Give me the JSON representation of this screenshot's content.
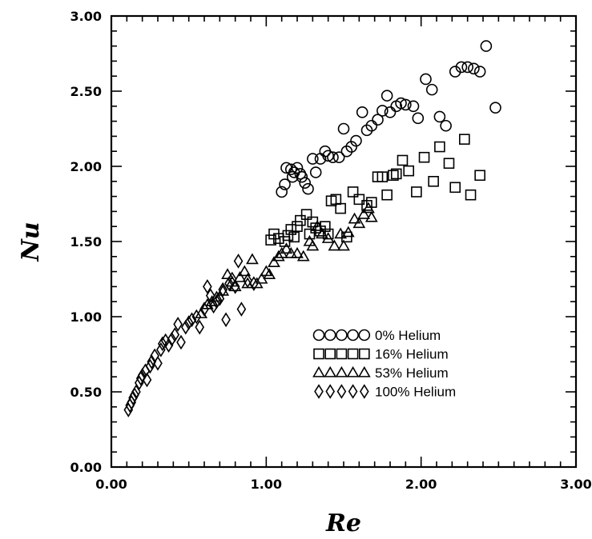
{
  "chart_data": {
    "type": "scatter",
    "title": "",
    "xlabel": "Re",
    "ylabel": "Nu",
    "xlim": [
      0,
      3
    ],
    "ylim": [
      0,
      3
    ],
    "x_ticks": [
      "0.00",
      "1.00",
      "2.00",
      "3.00"
    ],
    "y_ticks": [
      "0.00",
      "0.50",
      "1.00",
      "1.50",
      "2.00",
      "2.50",
      "3.00"
    ],
    "grid": false,
    "legend_position": "center-right",
    "series": [
      {
        "name": "0% Helium",
        "legend_symbols": "○○○○○",
        "marker": "circle",
        "points": [
          [
            1.1,
            1.83
          ],
          [
            1.12,
            1.88
          ],
          [
            1.13,
            1.99
          ],
          [
            1.16,
            1.98
          ],
          [
            1.17,
            1.93
          ],
          [
            1.18,
            1.96
          ],
          [
            1.2,
            1.99
          ],
          [
            1.22,
            1.95
          ],
          [
            1.23,
            1.93
          ],
          [
            1.25,
            1.89
          ],
          [
            1.27,
            1.85
          ],
          [
            1.3,
            2.05
          ],
          [
            1.32,
            1.96
          ],
          [
            1.35,
            2.05
          ],
          [
            1.38,
            2.1
          ],
          [
            1.4,
            2.07
          ],
          [
            1.43,
            2.06
          ],
          [
            1.47,
            2.06
          ],
          [
            1.5,
            2.25
          ],
          [
            1.52,
            2.1
          ],
          [
            1.55,
            2.13
          ],
          [
            1.58,
            2.17
          ],
          [
            1.62,
            2.36
          ],
          [
            1.65,
            2.24
          ],
          [
            1.68,
            2.27
          ],
          [
            1.72,
            2.31
          ],
          [
            1.75,
            2.37
          ],
          [
            1.78,
            2.47
          ],
          [
            1.8,
            2.36
          ],
          [
            1.84,
            2.4
          ],
          [
            1.87,
            2.42
          ],
          [
            1.9,
            2.41
          ],
          [
            1.95,
            2.4
          ],
          [
            1.98,
            2.32
          ],
          [
            2.03,
            2.58
          ],
          [
            2.07,
            2.51
          ],
          [
            2.12,
            2.33
          ],
          [
            2.16,
            2.27
          ],
          [
            2.22,
            2.63
          ],
          [
            2.26,
            2.66
          ],
          [
            2.3,
            2.66
          ],
          [
            2.34,
            2.65
          ],
          [
            2.38,
            2.63
          ],
          [
            2.42,
            2.8
          ],
          [
            2.48,
            2.39
          ]
        ]
      },
      {
        "name": "16% Helium",
        "legend_symbols": "□□□□□",
        "marker": "square",
        "points": [
          [
            1.03,
            1.51
          ],
          [
            1.05,
            1.55
          ],
          [
            1.08,
            1.52
          ],
          [
            1.12,
            1.5
          ],
          [
            1.14,
            1.54
          ],
          [
            1.16,
            1.58
          ],
          [
            1.18,
            1.53
          ],
          [
            1.2,
            1.6
          ],
          [
            1.22,
            1.64
          ],
          [
            1.26,
            1.68
          ],
          [
            1.28,
            1.55
          ],
          [
            1.3,
            1.63
          ],
          [
            1.32,
            1.59
          ],
          [
            1.35,
            1.57
          ],
          [
            1.38,
            1.6
          ],
          [
            1.4,
            1.55
          ],
          [
            1.42,
            1.77
          ],
          [
            1.45,
            1.78
          ],
          [
            1.48,
            1.72
          ],
          [
            1.52,
            1.53
          ],
          [
            1.56,
            1.83
          ],
          [
            1.6,
            1.78
          ],
          [
            1.65,
            1.74
          ],
          [
            1.68,
            1.76
          ],
          [
            1.72,
            1.93
          ],
          [
            1.75,
            1.93
          ],
          [
            1.78,
            1.81
          ],
          [
            1.82,
            1.94
          ],
          [
            1.84,
            1.95
          ],
          [
            1.88,
            2.04
          ],
          [
            1.92,
            1.97
          ],
          [
            1.97,
            1.83
          ],
          [
            2.02,
            2.06
          ],
          [
            2.08,
            1.9
          ],
          [
            2.12,
            2.13
          ],
          [
            2.18,
            2.02
          ],
          [
            2.22,
            1.86
          ],
          [
            2.28,
            2.18
          ],
          [
            2.32,
            1.81
          ],
          [
            2.38,
            1.94
          ]
        ]
      },
      {
        "name": "53% Helium",
        "legend_symbols": "△△△△△",
        "marker": "triangle",
        "points": [
          [
            0.58,
            1.02
          ],
          [
            0.62,
            1.08
          ],
          [
            0.65,
            1.1
          ],
          [
            0.68,
            1.13
          ],
          [
            0.72,
            1.17
          ],
          [
            0.75,
            1.28
          ],
          [
            0.78,
            1.23
          ],
          [
            0.8,
            1.2
          ],
          [
            0.83,
            1.26
          ],
          [
            0.86,
            1.3
          ],
          [
            0.88,
            1.22
          ],
          [
            0.91,
            1.38
          ],
          [
            0.94,
            1.22
          ],
          [
            0.97,
            1.25
          ],
          [
            1.0,
            1.3
          ],
          [
            1.02,
            1.28
          ],
          [
            1.05,
            1.36
          ],
          [
            1.08,
            1.4
          ],
          [
            1.1,
            1.42
          ],
          [
            1.13,
            1.45
          ],
          [
            1.16,
            1.42
          ],
          [
            1.2,
            1.42
          ],
          [
            1.24,
            1.4
          ],
          [
            1.28,
            1.5
          ],
          [
            1.3,
            1.47
          ],
          [
            1.33,
            1.6
          ],
          [
            1.36,
            1.55
          ],
          [
            1.4,
            1.52
          ],
          [
            1.44,
            1.47
          ],
          [
            1.48,
            1.55
          ],
          [
            1.5,
            1.47
          ],
          [
            1.53,
            1.56
          ],
          [
            1.57,
            1.65
          ],
          [
            1.6,
            1.62
          ],
          [
            1.63,
            1.68
          ],
          [
            1.66,
            1.72
          ],
          [
            1.68,
            1.66
          ]
        ]
      },
      {
        "name": "100% Helium",
        "legend_symbols": "◊◊◊◊◊",
        "marker": "diamond",
        "points": [
          [
            0.11,
            0.38
          ],
          [
            0.12,
            0.41
          ],
          [
            0.13,
            0.43
          ],
          [
            0.14,
            0.46
          ],
          [
            0.15,
            0.48
          ],
          [
            0.16,
            0.5
          ],
          [
            0.18,
            0.56
          ],
          [
            0.19,
            0.59
          ],
          [
            0.2,
            0.61
          ],
          [
            0.22,
            0.64
          ],
          [
            0.23,
            0.58
          ],
          [
            0.25,
            0.67
          ],
          [
            0.26,
            0.7
          ],
          [
            0.28,
            0.74
          ],
          [
            0.3,
            0.69
          ],
          [
            0.32,
            0.78
          ],
          [
            0.33,
            0.82
          ],
          [
            0.35,
            0.84
          ],
          [
            0.37,
            0.81
          ],
          [
            0.39,
            0.85
          ],
          [
            0.41,
            0.88
          ],
          [
            0.43,
            0.95
          ],
          [
            0.45,
            0.83
          ],
          [
            0.48,
            0.93
          ],
          [
            0.5,
            0.96
          ],
          [
            0.52,
            0.98
          ],
          [
            0.55,
            1.0
          ],
          [
            0.57,
            0.93
          ],
          [
            0.6,
            1.05
          ],
          [
            0.62,
            1.2
          ],
          [
            0.64,
            1.14
          ],
          [
            0.66,
            1.07
          ],
          [
            0.68,
            1.1
          ],
          [
            0.7,
            1.12
          ],
          [
            0.72,
            1.18
          ],
          [
            0.74,
            0.98
          ],
          [
            0.76,
            1.22
          ],
          [
            0.78,
            1.25
          ],
          [
            0.8,
            1.2
          ],
          [
            0.82,
            1.37
          ],
          [
            0.84,
            1.05
          ],
          [
            0.88,
            1.24
          ],
          [
            0.92,
            1.22
          ]
        ]
      }
    ]
  }
}
